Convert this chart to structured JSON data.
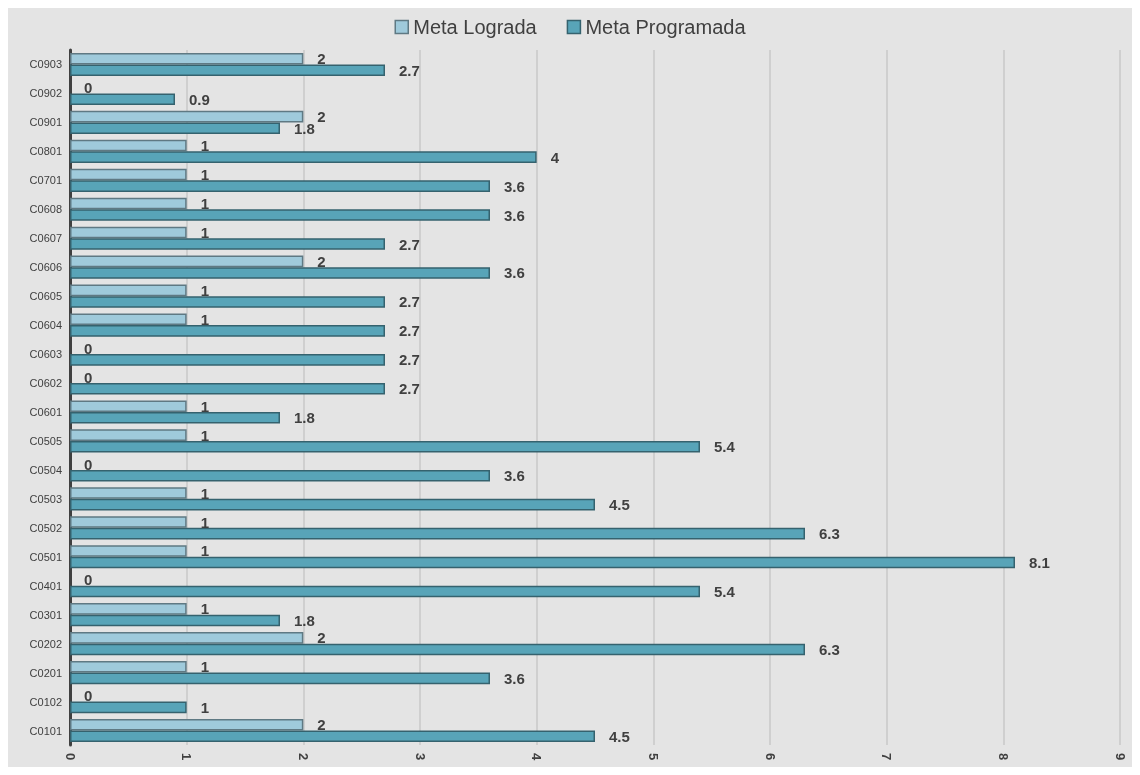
{
  "chart_data": {
    "type": "bar",
    "orientation": "horizontal",
    "categories": [
      "C0903",
      "C0902",
      "C0901",
      "C0801",
      "C0701",
      "C0608",
      "C0607",
      "C0606",
      "C0605",
      "C0604",
      "C0603",
      "C0602",
      "C0601",
      "C0505",
      "C0504",
      "C0503",
      "C0502",
      "C0501",
      "C0401",
      "C0301",
      "C0202",
      "C0201",
      "C0102",
      "C0101"
    ],
    "series": [
      {
        "name": "Meta Lograda",
        "color": "#9fcadb",
        "values": [
          2,
          0,
          2,
          1,
          1,
          1,
          1,
          2,
          1,
          1,
          0,
          0,
          1,
          1,
          0,
          1,
          1,
          1,
          0,
          1,
          2,
          1,
          0,
          2
        ]
      },
      {
        "name": "Meta Programada",
        "color": "#58a4b8",
        "values": [
          2.7,
          0.9,
          1.8,
          4,
          3.6,
          3.6,
          2.7,
          3.6,
          2.7,
          2.7,
          2.7,
          2.7,
          1.8,
          5.4,
          3.6,
          4.5,
          6.3,
          8.1,
          5.4,
          1.8,
          6.3,
          3.6,
          1,
          4.5
        ]
      }
    ],
    "xlim": [
      0,
      9
    ],
    "xticks": [
      0,
      1,
      2,
      3,
      4,
      5,
      6,
      7,
      8,
      9
    ],
    "grid": "x",
    "legend": "top",
    "data_labels": true
  }
}
